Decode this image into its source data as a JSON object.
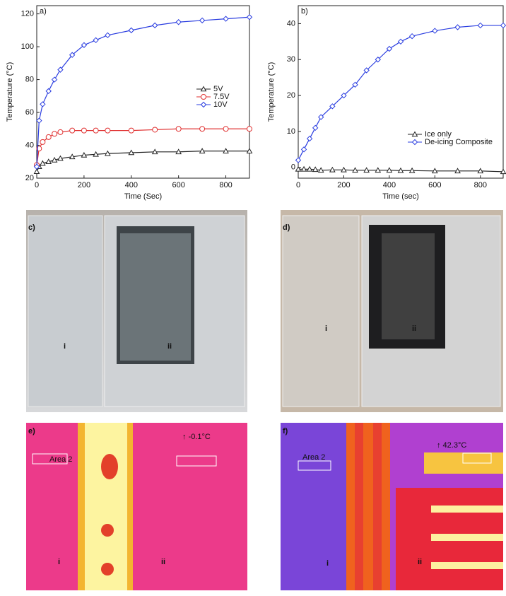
{
  "chart_data": [
    {
      "type": "line",
      "title": "a)",
      "xlabel": "Time (Sec)",
      "ylabel": "Temperature (°C)",
      "x": [
        0,
        10,
        25,
        50,
        75,
        100,
        150,
        200,
        250,
        300,
        400,
        500,
        600,
        700,
        800,
        900
      ],
      "series": [
        {
          "name": "5V",
          "color": "#222222",
          "marker": "triangle",
          "values": [
            24,
            27,
            29,
            30,
            31,
            32,
            33,
            34,
            34.5,
            35,
            35.5,
            36,
            36,
            36.5,
            36.5,
            36.5
          ]
        },
        {
          "name": "7.5V",
          "color": "#e03030",
          "marker": "circle",
          "values": [
            28,
            38,
            42,
            45,
            47,
            48,
            49,
            49,
            49,
            49,
            49,
            49.5,
            50,
            50,
            50,
            50
          ]
        },
        {
          "name": "10V",
          "color": "#2a3de0",
          "marker": "diamond",
          "values": [
            27,
            55,
            65,
            73,
            80,
            86,
            95,
            101,
            104,
            107,
            110,
            113,
            115,
            116,
            117,
            118
          ]
        }
      ],
      "xlim": [
        0,
        900
      ],
      "xticks": [
        0,
        200,
        400,
        600,
        800
      ],
      "ylim": [
        20,
        125
      ],
      "yticks": [
        20,
        40,
        60,
        80,
        100,
        120
      ],
      "legend": "right"
    },
    {
      "type": "line",
      "title": "b)",
      "xlabel": "Time (sec)",
      "ylabel": "Temperature (°C)",
      "x": [
        0,
        25,
        50,
        75,
        100,
        150,
        200,
        250,
        300,
        350,
        400,
        450,
        500,
        600,
        700,
        800,
        900
      ],
      "series": [
        {
          "name": "Ice only",
          "color": "#222222",
          "marker": "triangle",
          "values": [
            -0.5,
            -0.5,
            -0.5,
            -0.6,
            -0.8,
            -0.7,
            -0.7,
            -0.8,
            -0.8,
            -0.8,
            -0.8,
            -0.9,
            -0.9,
            -1,
            -1,
            -1,
            -1.2
          ]
        },
        {
          "name": "De-icing Composite",
          "color": "#2a3de0",
          "marker": "diamond",
          "values": [
            2,
            5,
            8,
            11,
            14,
            17,
            20,
            23,
            27,
            30,
            33,
            35,
            36.5,
            38,
            39,
            39.5,
            39.5
          ]
        }
      ],
      "xlim": [
        0,
        900
      ],
      "xticks": [
        0,
        200,
        400,
        600,
        800
      ],
      "ylim": [
        -3,
        45
      ],
      "yticks": [
        0,
        10,
        20,
        30,
        40
      ],
      "legend": "lower right"
    }
  ],
  "panels": [
    {
      "label": "c)",
      "items": [
        "i",
        "ii"
      ]
    },
    {
      "label": "d)",
      "items": [
        "i",
        "ii"
      ]
    },
    {
      "label": "e)",
      "items": [
        "Area 2",
        "↑ -0.1°C",
        "i",
        "ii"
      ]
    },
    {
      "label": "f)",
      "items": [
        "Area 2",
        "↑ 42.3°C",
        "i",
        "ii"
      ]
    }
  ]
}
